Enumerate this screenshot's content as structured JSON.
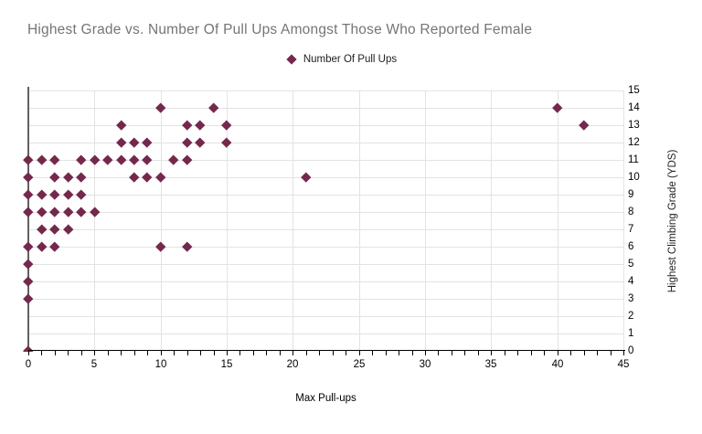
{
  "chart_data": {
    "type": "scatter",
    "title": "Highest Grade vs. Number Of Pull Ups Amongst Those Who Reported Female",
    "xlabel": "Max Pull-ups",
    "ylabel": "Highest Climbing Grade (YDS)",
    "xlim": [
      0,
      45
    ],
    "ylim": [
      0,
      15
    ],
    "x_major_ticks": [
      0,
      5,
      10,
      15,
      20,
      25,
      30,
      35,
      40,
      45
    ],
    "x_minor_tick_step": 1,
    "y_ticks": [
      0,
      1,
      2,
      3,
      4,
      5,
      6,
      7,
      8,
      9,
      10,
      11,
      12,
      13,
      14,
      15
    ],
    "y_axis_side": "right",
    "grid": {
      "horizontal_step": 1,
      "vertical_step": 5,
      "color": "#e3e3e3"
    },
    "legend_position": "top-center",
    "marker_shape": "diamond",
    "colors": {
      "marker": "#74294c",
      "title_text": "#757575",
      "axis_text": "#000000",
      "x_axis_line": "#000000",
      "y_axis_line": "#616161",
      "grid_line": "#e3e3e3"
    },
    "series": [
      {
        "name": "Number Of Pull Ups",
        "points": [
          [
            0,
            0
          ],
          [
            0,
            3
          ],
          [
            0,
            4
          ],
          [
            0,
            5
          ],
          [
            0,
            6
          ],
          [
            1,
            6
          ],
          [
            2,
            6
          ],
          [
            10,
            6
          ],
          [
            12,
            6
          ],
          [
            1,
            7
          ],
          [
            2,
            7
          ],
          [
            3,
            7
          ],
          [
            0,
            8
          ],
          [
            1,
            8
          ],
          [
            2,
            8
          ],
          [
            3,
            8
          ],
          [
            4,
            8
          ],
          [
            5,
            8
          ],
          [
            0,
            9
          ],
          [
            1,
            9
          ],
          [
            2,
            9
          ],
          [
            3,
            9
          ],
          [
            4,
            9
          ],
          [
            0,
            10
          ],
          [
            2,
            10
          ],
          [
            3,
            10
          ],
          [
            4,
            10
          ],
          [
            8,
            10
          ],
          [
            9,
            10
          ],
          [
            10,
            10
          ],
          [
            21,
            10
          ],
          [
            0,
            11
          ],
          [
            1,
            11
          ],
          [
            2,
            11
          ],
          [
            4,
            11
          ],
          [
            5,
            11
          ],
          [
            6,
            11
          ],
          [
            7,
            11
          ],
          [
            8,
            11
          ],
          [
            9,
            11
          ],
          [
            11,
            11
          ],
          [
            12,
            11
          ],
          [
            7,
            12
          ],
          [
            8,
            12
          ],
          [
            9,
            12
          ],
          [
            12,
            12
          ],
          [
            13,
            12
          ],
          [
            15,
            12
          ],
          [
            7,
            13
          ],
          [
            12,
            13
          ],
          [
            13,
            13
          ],
          [
            15,
            13
          ],
          [
            42,
            13
          ],
          [
            10,
            14
          ],
          [
            14,
            14
          ],
          [
            40,
            14
          ]
        ]
      }
    ]
  }
}
